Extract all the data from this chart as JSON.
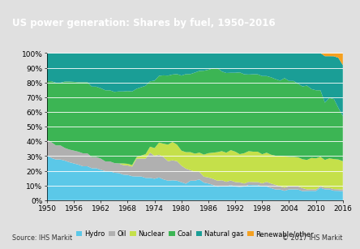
{
  "title": "US power generation: Shares by fuel, 1950–2016",
  "title_bg_color": "#808080",
  "title_text_color": "#ffffff",
  "source_text": "Source: IHS Markit",
  "copyright_text": "© 2017 IHS Markit",
  "years": [
    1950,
    1951,
    1952,
    1953,
    1954,
    1955,
    1956,
    1957,
    1958,
    1959,
    1960,
    1961,
    1962,
    1963,
    1964,
    1965,
    1966,
    1967,
    1968,
    1969,
    1970,
    1971,
    1972,
    1973,
    1974,
    1975,
    1976,
    1977,
    1978,
    1979,
    1980,
    1981,
    1982,
    1983,
    1984,
    1985,
    1986,
    1987,
    1988,
    1989,
    1990,
    1991,
    1992,
    1993,
    1994,
    1995,
    1996,
    1997,
    1998,
    1999,
    2000,
    2001,
    2002,
    2003,
    2004,
    2005,
    2006,
    2007,
    2008,
    2009,
    2010,
    2011,
    2012,
    2013,
    2014,
    2015,
    2016
  ],
  "hydro": [
    29,
    27,
    26,
    26,
    25,
    24,
    23,
    22,
    21,
    21,
    20,
    20,
    19,
    18,
    18,
    17,
    17,
    16,
    16,
    15,
    16,
    16,
    15,
    15,
    14,
    15,
    14,
    13,
    13,
    13,
    12,
    11,
    13,
    13,
    14,
    12,
    11,
    10,
    9,
    9,
    9,
    10,
    9,
    9,
    9,
    10,
    10,
    10,
    9,
    9,
    8,
    7,
    7,
    6,
    7,
    7,
    7,
    6,
    6,
    6,
    6,
    8,
    7,
    7,
    6,
    6,
    6
  ],
  "oil": [
    10,
    10,
    9,
    9,
    8,
    8,
    8,
    8,
    8,
    8,
    7,
    7,
    7,
    6,
    6,
    6,
    6,
    6,
    6,
    6,
    12,
    12,
    13,
    17,
    15,
    15,
    15,
    13,
    13,
    13,
    11,
    10,
    7,
    6,
    5,
    4,
    4,
    4,
    4,
    4,
    3,
    3,
    3,
    3,
    2,
    2,
    2,
    2,
    2,
    3,
    3,
    3,
    2,
    2,
    2,
    2,
    2,
    2,
    1,
    1,
    1,
    1,
    1,
    1,
    1,
    1,
    1
  ],
  "nuclear": [
    0,
    0,
    0,
    0,
    0,
    0,
    0,
    0,
    0,
    0,
    0,
    0,
    0,
    0,
    0,
    0,
    0,
    1,
    1,
    1,
    1,
    2,
    3,
    4,
    5,
    8,
    9,
    11,
    12,
    11,
    10,
    11,
    12,
    12,
    13,
    15,
    16,
    17,
    19,
    19,
    19,
    20,
    20,
    19,
    20,
    20,
    20,
    20,
    19,
    19,
    19,
    19,
    20,
    20,
    19,
    19,
    19,
    19,
    19,
    20,
    20,
    19,
    18,
    19,
    19,
    19,
    19
  ],
  "coal": [
    38,
    39,
    40,
    40,
    42,
    43,
    43,
    43,
    44,
    44,
    44,
    44,
    44,
    44,
    44,
    44,
    45,
    45,
    46,
    46,
    46,
    46,
    46,
    44,
    44,
    44,
    46,
    46,
    44,
    47,
    50,
    52,
    52,
    54,
    55,
    57,
    55,
    55,
    56,
    52,
    52,
    51,
    52,
    55,
    52,
    50,
    51,
    51,
    51,
    50,
    51,
    50,
    49,
    50,
    49,
    49,
    48,
    48,
    48,
    44,
    44,
    43,
    37,
    39,
    38,
    33,
    30
  ],
  "natural_gas": [
    18,
    18,
    19,
    19,
    18,
    18,
    18,
    18,
    18,
    18,
    21,
    21,
    22,
    23,
    23,
    24,
    24,
    24,
    24,
    24,
    24,
    23,
    22,
    19,
    18,
    15,
    15,
    15,
    14,
    14,
    15,
    14,
    14,
    13,
    12,
    12,
    11,
    10,
    10,
    12,
    13,
    13,
    13,
    13,
    14,
    14,
    14,
    14,
    15,
    15,
    16,
    17,
    18,
    16,
    18,
    18,
    20,
    22,
    21,
    23,
    24,
    24,
    30,
    27,
    27,
    32,
    34
  ],
  "renewable": [
    0,
    0,
    0,
    0,
    0,
    0,
    0,
    0,
    0,
    0,
    0,
    0,
    0,
    0,
    0,
    0,
    0,
    0,
    0,
    0,
    0,
    0,
    0,
    0,
    0,
    0,
    0,
    0,
    0,
    0,
    0,
    0,
    0,
    0,
    0,
    0,
    0,
    0,
    0,
    0,
    0,
    0,
    0,
    0,
    0,
    0,
    0,
    0,
    0,
    0,
    0,
    0,
    0,
    0,
    0,
    0,
    0,
    0,
    0,
    0,
    0,
    0,
    2,
    2,
    2,
    3,
    8
  ],
  "colors": {
    "hydro": "#5bc8e8",
    "oil": "#b0b0b0",
    "nuclear": "#c5e04a",
    "coal": "#3cb554",
    "natural_gas": "#1a9e96",
    "renewable": "#f4a020"
  },
  "xlim": [
    1950,
    2016
  ],
  "ylim": [
    0,
    100
  ],
  "xticks": [
    1950,
    1956,
    1962,
    1968,
    1974,
    1980,
    1986,
    1992,
    1998,
    2004,
    2010,
    2016
  ],
  "yticks": [
    0,
    10,
    20,
    30,
    40,
    50,
    60,
    70,
    80,
    90,
    100
  ],
  "bg_plot_color": "#ffffff",
  "bg_fig_color": "#e0e0e0",
  "legend_labels": [
    "Hydro",
    "Oil",
    "Nuclear",
    "Coal",
    "Natural gas",
    "Renewable/other"
  ]
}
